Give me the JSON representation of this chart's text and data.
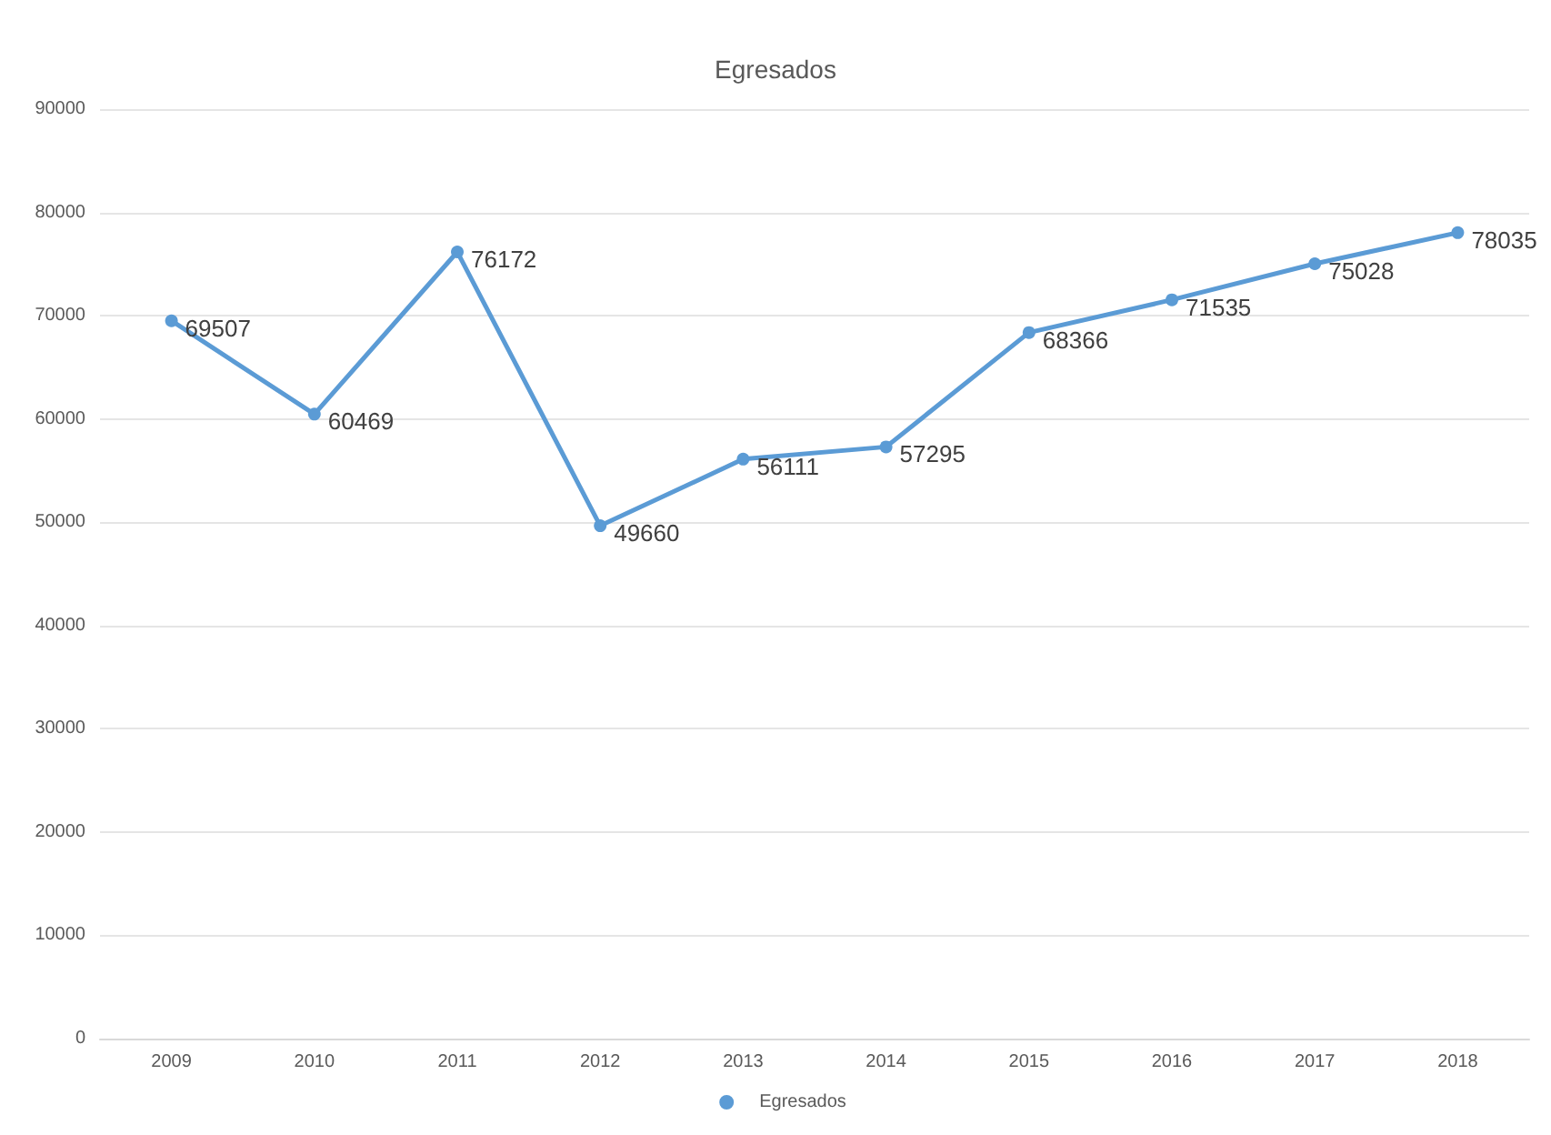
{
  "chart_data": {
    "type": "line",
    "title": "Egresados",
    "categories": [
      "2009",
      "2010",
      "2011",
      "2012",
      "2013",
      "2014",
      "2015",
      "2016",
      "2017",
      "2018"
    ],
    "series": [
      {
        "name": "Egresados",
        "color": "#5b9bd5",
        "values": [
          69507,
          60469,
          76172,
          49660,
          56111,
          57295,
          68366,
          71535,
          75028,
          78035
        ]
      }
    ],
    "ylim": [
      0,
      90000
    ],
    "yticks": [
      0,
      10000,
      20000,
      30000,
      40000,
      50000,
      60000,
      70000,
      80000,
      90000
    ],
    "grid": "y",
    "legend": "bottom",
    "marker": "circle",
    "line_style": "solid",
    "data_labels": true
  }
}
